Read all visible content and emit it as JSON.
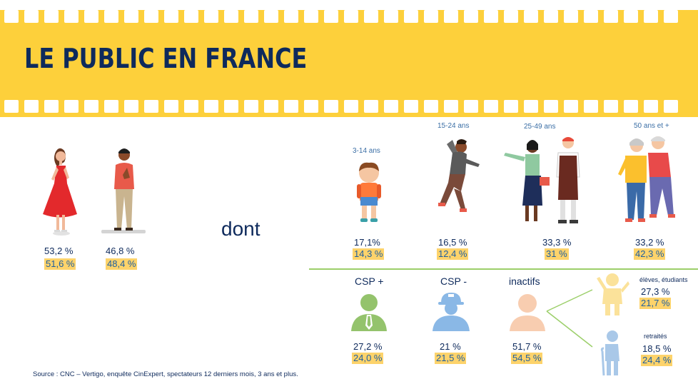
{
  "title": "LE PUBLIC EN FRANCE",
  "dont": "dont",
  "gender": [
    {
      "value": "53,2 %",
      "sub": "51,6 %"
    },
    {
      "value": "46,8 %",
      "sub": "48,4 %"
    }
  ],
  "ages": [
    {
      "label": "3-14 ans",
      "value": "17,1%",
      "sub": "14,3 %"
    },
    {
      "label": "15-24 ans",
      "value": "16,5 %",
      "sub": "12,4 %"
    },
    {
      "label": "25-49 ans",
      "value": "33,3 %",
      "sub": "31 %"
    },
    {
      "label": "50 ans et +",
      "value": "33,2 %",
      "sub": "42,3 %"
    }
  ],
  "csp": [
    {
      "label": "CSP +",
      "value": "27,2 %",
      "sub": "24,0 %"
    },
    {
      "label": "CSP -",
      "value": "21 %",
      "sub": "21,5 %"
    },
    {
      "label": "inactifs",
      "value": "51,7 %",
      "sub": "54,5 %"
    }
  ],
  "inactifs_detail": [
    {
      "label": "élèves, étudiants",
      "value": "27,3 %",
      "sub": "21,7 %"
    },
    {
      "label": "retraités",
      "value": "18,5 %",
      "sub": "24,4 %"
    }
  ],
  "source": "Source : CNC – Vertigo, enquête CinExpert, spectateurs 12 derniers mois, 3 ans et plus.",
  "colors": {
    "banner": "#fdd03b",
    "title": "#0e2a5c",
    "highlight": "#fdd36b",
    "divider": "#9ccf6a",
    "csp_plus": "#94c36c",
    "csp_minus": "#8ab8e6",
    "inactif": "#f8cdb0"
  }
}
